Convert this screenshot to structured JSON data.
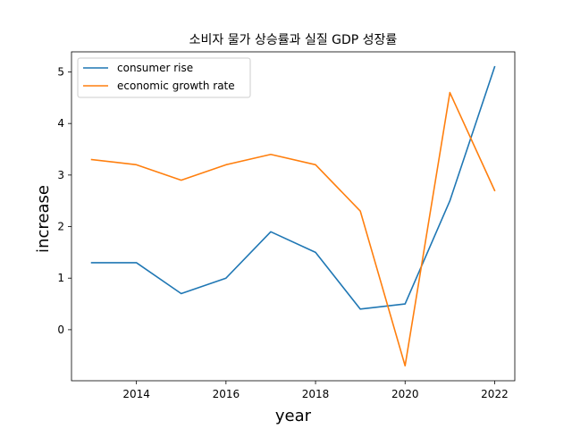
{
  "chart_data": {
    "type": "line",
    "title": "소비자 물가 상승률과 실질 GDP 성장률",
    "xlabel": "year",
    "ylabel": "increase",
    "x": [
      2013,
      2014,
      2015,
      2016,
      2017,
      2018,
      2019,
      2020,
      2021,
      2022
    ],
    "xlim": [
      2012.55,
      2022.45
    ],
    "ylim": [
      -0.99,
      5.39
    ],
    "x_ticks": [
      2014,
      2016,
      2018,
      2020,
      2022
    ],
    "y_ticks": [
      0,
      1,
      2,
      3,
      4,
      5
    ],
    "grid": false,
    "legend_position": "top-left",
    "series": [
      {
        "name": "consumer rise",
        "color": "#1f77b4",
        "values": [
          1.3,
          1.3,
          0.7,
          1.0,
          1.9,
          1.5,
          0.4,
          0.5,
          2.5,
          5.1
        ]
      },
      {
        "name": "economic growth rate",
        "color": "#ff7f0e",
        "values": [
          3.3,
          3.2,
          2.9,
          3.2,
          3.4,
          3.2,
          2.3,
          -0.7,
          4.6,
          2.7
        ]
      }
    ]
  }
}
